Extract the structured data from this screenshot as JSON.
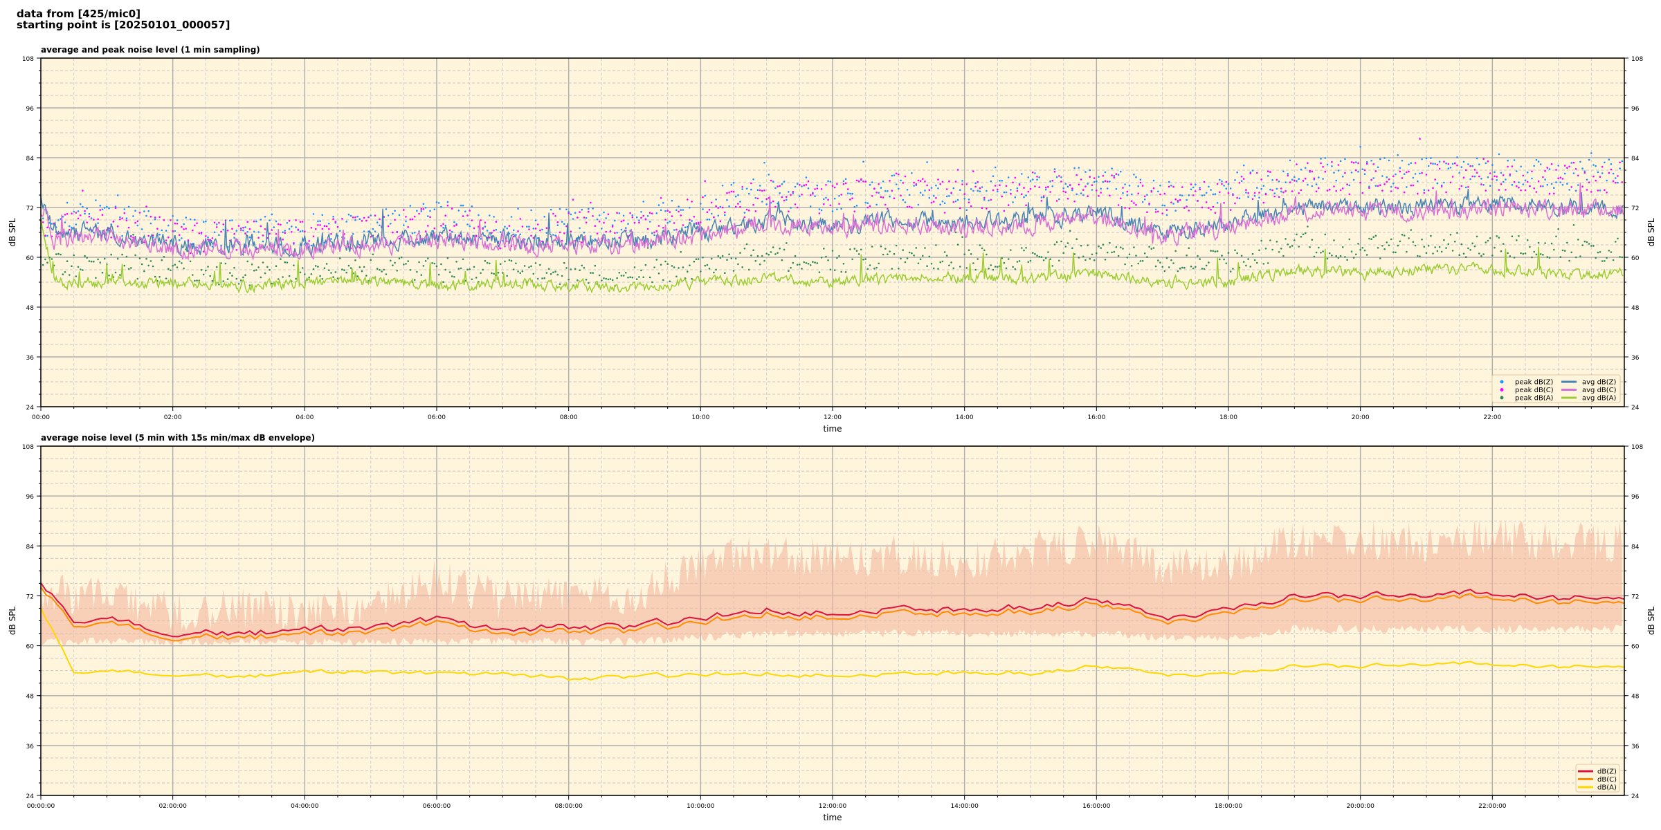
{
  "header": {
    "line1": "data from [425/mic0]",
    "line2": "starting point is [20250101_000057]"
  },
  "chart_data": [
    {
      "type": "line",
      "title": "average and peak noise level (1 min sampling)",
      "xlabel": "time",
      "ylabel": "dB SPL",
      "ylim": [
        24,
        108
      ],
      "yticks": [
        24,
        36,
        48,
        60,
        72,
        84,
        96,
        108
      ],
      "xlim_hours": [
        0,
        24
      ],
      "xtick_labels": [
        "00:00",
        "02:00",
        "04:00",
        "06:00",
        "08:00",
        "10:00",
        "12:00",
        "14:00",
        "16:00",
        "18:00",
        "20:00",
        "22:00"
      ],
      "grid": true,
      "background": "#fff5dc",
      "legend": {
        "placement": "lower-right",
        "columns": 2
      },
      "sampling_minutes": 1,
      "series": [
        {
          "name": "peak dB(Z)",
          "kind": "scatter",
          "color": "#1e90ff",
          "hourly_level": [
            69,
            70,
            66,
            66,
            66,
            67,
            70,
            67,
            68,
            68,
            72,
            76,
            75,
            77,
            75,
            77,
            79,
            74,
            76,
            80,
            80,
            80,
            81,
            80
          ],
          "noise": 4
        },
        {
          "name": "peak dB(C)",
          "kind": "scatter",
          "color": "#ff00ff",
          "hourly_level": [
            68,
            69,
            65,
            65,
            65,
            66,
            69,
            66,
            67,
            67,
            71,
            75,
            74,
            76,
            74,
            76,
            78,
            73,
            75,
            79,
            79,
            79,
            80,
            79
          ],
          "noise": 4
        },
        {
          "name": "peak dB(A)",
          "kind": "scatter",
          "color": "#2e8b57",
          "hourly_level": [
            58,
            58,
            57,
            56,
            57,
            57,
            57,
            57,
            56,
            56,
            58,
            60,
            59,
            60,
            60,
            60,
            62,
            59,
            59,
            63,
            62,
            63,
            63,
            62
          ],
          "noise": 3
        },
        {
          "name": "avg dB(Z)",
          "kind": "line",
          "color": "#4682b4",
          "hourly_level": [
            66,
            66,
            63,
            63,
            63,
            64,
            65,
            64,
            64,
            64,
            66,
            69,
            68,
            69,
            68,
            69,
            71,
            66,
            68,
            72,
            72,
            72,
            73,
            72
          ],
          "noise": 2.2
        },
        {
          "name": "avg dB(C)",
          "kind": "line",
          "color": "#da70d6",
          "hourly_level": [
            64.5,
            64.5,
            62,
            62,
            62,
            63,
            64,
            63,
            63,
            63,
            65,
            68,
            67,
            68,
            67,
            68,
            70,
            65,
            67,
            71,
            71,
            71,
            72,
            71
          ],
          "noise": 2.2
        },
        {
          "name": "avg dB(A)",
          "kind": "line",
          "color": "#9acd32",
          "hourly_level": [
            54,
            54,
            54,
            53,
            54,
            54,
            53,
            54,
            53,
            53,
            54,
            55,
            54,
            55,
            55,
            55,
            56,
            54,
            54,
            57,
            56,
            57,
            57,
            56
          ],
          "noise": 1.4
        }
      ]
    },
    {
      "type": "line",
      "title": "average noise level (5 min with 15s min/max dB envelope)",
      "xlabel": "time",
      "ylabel": "dB SPL",
      "ylim": [
        24,
        108
      ],
      "yticks": [
        24,
        36,
        48,
        60,
        72,
        84,
        96,
        108
      ],
      "xlim_hours": [
        0,
        24
      ],
      "xtick_labels": [
        "00:00:00",
        "02:00:00",
        "04:00:00",
        "06:00:00",
        "08:00:00",
        "10:00:00",
        "12:00:00",
        "14:00:00",
        "16:00:00",
        "18:00:00",
        "20:00:00",
        "22:00:00"
      ],
      "grid": true,
      "background": "#fff5dc",
      "legend": {
        "placement": "lower-right",
        "columns": 1
      },
      "envelope": {
        "color": "#f4b8a0",
        "hourly_min": [
          61,
          61,
          61,
          61,
          61,
          61,
          61,
          61,
          61,
          61,
          62,
          63,
          63,
          63,
          63,
          63,
          63,
          62,
          62,
          64,
          64,
          64,
          64,
          64
        ],
        "hourly_max": [
          72,
          73,
          68,
          69,
          68,
          70,
          76,
          71,
          72,
          72,
          80,
          82,
          81,
          82,
          80,
          83,
          85,
          79,
          80,
          85,
          85,
          85,
          86,
          85
        ]
      },
      "series": [
        {
          "name": "dB(Z)",
          "color": "#dc143c",
          "hourly_level": [
            66,
            66,
            63.5,
            63,
            63.5,
            64,
            66,
            64,
            64.5,
            64.5,
            66.5,
            69,
            68,
            69.5,
            68.5,
            69.5,
            71,
            66.5,
            68.5,
            72.5,
            72,
            72,
            72.5,
            71.5
          ]
        },
        {
          "name": "dB(C)",
          "color": "#ff8c00",
          "hourly_level": [
            65,
            65,
            62.5,
            62,
            62.5,
            63,
            65,
            63,
            63.5,
            63.5,
            65.5,
            68,
            67,
            68.5,
            67.5,
            68.5,
            70,
            65.5,
            67.5,
            71.5,
            71,
            71,
            71.5,
            70.5
          ]
        },
        {
          "name": "dB(A)",
          "color": "#ffd700",
          "hourly_level": [
            54,
            53.5,
            53.5,
            52.5,
            53.5,
            53.5,
            53,
            53.5,
            52,
            52.5,
            53,
            53.5,
            53,
            53.5,
            53.5,
            53.5,
            55,
            53,
            53,
            55.5,
            55,
            55.5,
            55.5,
            55
          ]
        }
      ]
    }
  ]
}
